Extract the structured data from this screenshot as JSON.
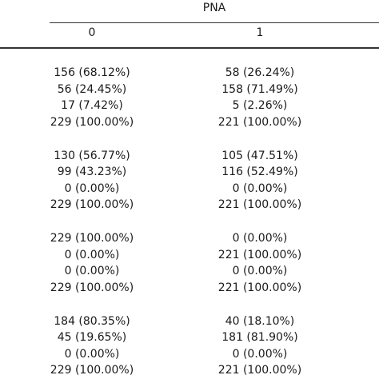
{
  "table": {
    "group_header": "PNA",
    "columns": [
      "0",
      "1"
    ],
    "blocks": [
      {
        "rows": [
          [
            "156 (68.12%)",
            "58 (26.24%)"
          ],
          [
            "56 (24.45%)",
            "158 (71.49%)"
          ],
          [
            "17 (7.42%)",
            "5 (2.26%)"
          ],
          [
            "229 (100.00%)",
            "221 (100.00%)"
          ]
        ]
      },
      {
        "rows": [
          [
            "130 (56.77%)",
            "105 (47.51%)"
          ],
          [
            "99 (43.23%)",
            "116 (52.49%)"
          ],
          [
            "0 (0.00%)",
            "0 (0.00%)"
          ],
          [
            "229 (100.00%)",
            "221 (100.00%)"
          ]
        ]
      },
      {
        "rows": [
          [
            "229 (100.00%)",
            "0 (0.00%)"
          ],
          [
            "0 (0.00%)",
            "221 (100.00%)"
          ],
          [
            "0 (0.00%)",
            "0 (0.00%)"
          ],
          [
            "229 (100.00%)",
            "221 (100.00%)"
          ]
        ]
      },
      {
        "rows": [
          [
            "184 (80.35%)",
            "40 (18.10%)"
          ],
          [
            "45 (19.65%)",
            "181 (81.90%)"
          ],
          [
            "0 (0.00%)",
            "0 (0.00%)"
          ],
          [
            "229 (100.00%)",
            "221 (100.00%)"
          ]
        ]
      }
    ]
  }
}
